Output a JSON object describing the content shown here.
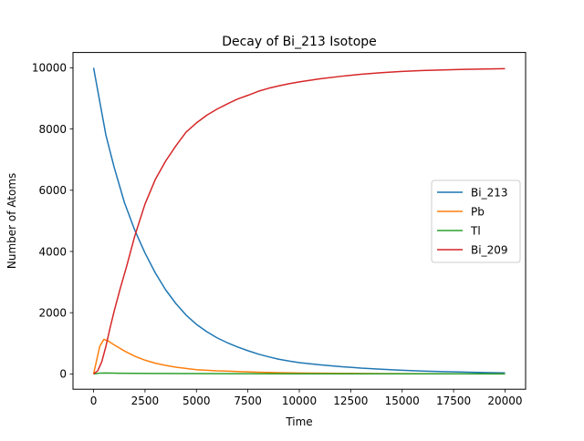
{
  "chart_data": {
    "type": "line",
    "title": "Decay of Bi_213 Isotope",
    "xlabel": "Time",
    "ylabel": "Number of Atoms",
    "xlim": [
      -1000,
      21000
    ],
    "ylim": [
      -500,
      10500
    ],
    "xticks": [
      0,
      2500,
      5000,
      7500,
      10000,
      12500,
      15000,
      17500,
      20000
    ],
    "yticks": [
      0,
      2000,
      4000,
      6000,
      8000,
      10000
    ],
    "grid": false,
    "legend_position": "center-right",
    "series": [
      {
        "name": "Bi_213",
        "color": "#1f77b4",
        "points": [
          [
            0,
            10000
          ],
          [
            300,
            8900
          ],
          [
            600,
            7800
          ],
          [
            1000,
            6750
          ],
          [
            1500,
            5600
          ],
          [
            2000,
            4700
          ],
          [
            2500,
            3950
          ],
          [
            3000,
            3300
          ],
          [
            3500,
            2750
          ],
          [
            4000,
            2300
          ],
          [
            4500,
            1920
          ],
          [
            5000,
            1620
          ],
          [
            5500,
            1380
          ],
          [
            6000,
            1180
          ],
          [
            6500,
            1020
          ],
          [
            7000,
            880
          ],
          [
            7500,
            760
          ],
          [
            8000,
            650
          ],
          [
            8500,
            560
          ],
          [
            9000,
            480
          ],
          [
            9500,
            420
          ],
          [
            10000,
            370
          ],
          [
            11000,
            300
          ],
          [
            12000,
            240
          ],
          [
            13000,
            190
          ],
          [
            14000,
            155
          ],
          [
            15000,
            120
          ],
          [
            16000,
            95
          ],
          [
            17000,
            75
          ],
          [
            18000,
            60
          ],
          [
            19000,
            45
          ],
          [
            20000,
            35
          ]
        ]
      },
      {
        "name": "Pb",
        "color": "#ff7f0e",
        "points": [
          [
            0,
            0
          ],
          [
            150,
            450
          ],
          [
            300,
            900
          ],
          [
            500,
            1130
          ],
          [
            700,
            1080
          ],
          [
            1000,
            950
          ],
          [
            1500,
            750
          ],
          [
            2000,
            580
          ],
          [
            2500,
            450
          ],
          [
            3000,
            350
          ],
          [
            3500,
            280
          ],
          [
            4000,
            220
          ],
          [
            4500,
            180
          ],
          [
            5000,
            140
          ],
          [
            6000,
            100
          ],
          [
            7000,
            80
          ],
          [
            8000,
            55
          ],
          [
            9000,
            40
          ],
          [
            10000,
            30
          ],
          [
            12000,
            20
          ],
          [
            14000,
            12
          ],
          [
            16000,
            8
          ],
          [
            18000,
            5
          ],
          [
            20000,
            3
          ]
        ]
      },
      {
        "name": "Tl",
        "color": "#2ca02c",
        "points": [
          [
            0,
            0
          ],
          [
            300,
            25
          ],
          [
            600,
            30
          ],
          [
            1000,
            25
          ],
          [
            2000,
            18
          ],
          [
            3000,
            14
          ],
          [
            5000,
            10
          ],
          [
            7500,
            8
          ],
          [
            10000,
            6
          ],
          [
            12500,
            5
          ],
          [
            15000,
            4
          ],
          [
            17500,
            3
          ],
          [
            20000,
            2
          ]
        ]
      },
      {
        "name": "Bi_209",
        "color": "#d62728",
        "points": [
          [
            0,
            0
          ],
          [
            200,
            100
          ],
          [
            400,
            400
          ],
          [
            600,
            900
          ],
          [
            800,
            1500
          ],
          [
            1000,
            2050
          ],
          [
            1300,
            2800
          ],
          [
            1600,
            3500
          ],
          [
            2000,
            4500
          ],
          [
            2500,
            5550
          ],
          [
            3000,
            6350
          ],
          [
            3500,
            6950
          ],
          [
            4000,
            7450
          ],
          [
            4500,
            7900
          ],
          [
            5000,
            8200
          ],
          [
            5500,
            8450
          ],
          [
            6000,
            8650
          ],
          [
            6500,
            8820
          ],
          [
            7000,
            8980
          ],
          [
            7500,
            9100
          ],
          [
            8000,
            9230
          ],
          [
            8500,
            9330
          ],
          [
            9000,
            9410
          ],
          [
            9500,
            9480
          ],
          [
            10000,
            9540
          ],
          [
            11000,
            9640
          ],
          [
            12000,
            9720
          ],
          [
            13000,
            9790
          ],
          [
            14000,
            9840
          ],
          [
            15000,
            9880
          ],
          [
            16000,
            9910
          ],
          [
            17000,
            9930
          ],
          [
            18000,
            9950
          ],
          [
            19000,
            9960
          ],
          [
            20000,
            9970
          ]
        ]
      }
    ]
  }
}
